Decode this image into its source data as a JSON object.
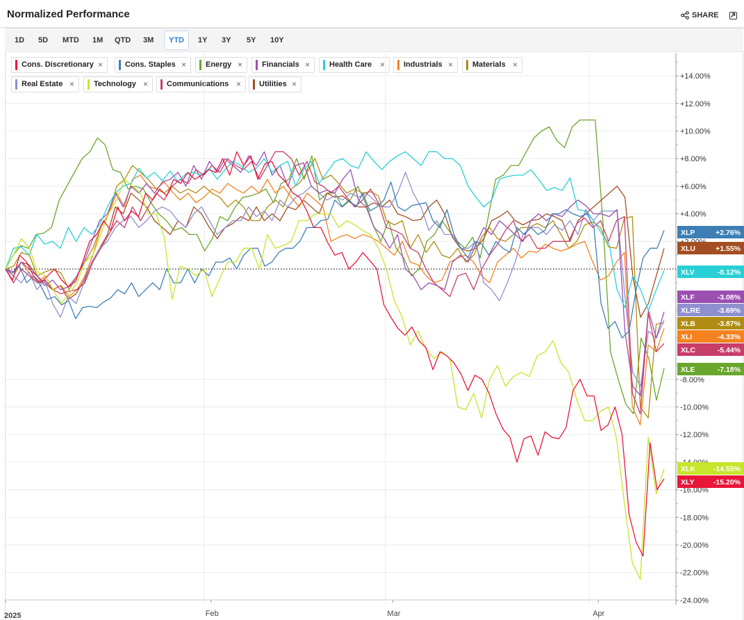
{
  "header": {
    "title": "Normalized Performance",
    "share_label": "SHARE"
  },
  "ranges": [
    {
      "label": "1D",
      "active": false
    },
    {
      "label": "5D",
      "active": false
    },
    {
      "label": "MTD",
      "active": false
    },
    {
      "label": "1M",
      "active": false
    },
    {
      "label": "QTD",
      "active": false
    },
    {
      "label": "3M",
      "active": false
    },
    {
      "label": "YTD",
      "active": true
    },
    {
      "label": "1Y",
      "active": false
    },
    {
      "label": "3Y",
      "active": false
    },
    {
      "label": "5Y",
      "active": false
    },
    {
      "label": "10Y",
      "active": false
    }
  ],
  "legend": [
    {
      "name": "Cons. Discretionary",
      "color": "#e8173a",
      "close": "×"
    },
    {
      "name": "Cons. Staples",
      "color": "#3d7fb5",
      "close": "×"
    },
    {
      "name": "Energy",
      "color": "#6aa52c",
      "close": "×"
    },
    {
      "name": "Financials",
      "color": "#9b4fb0",
      "close": "×"
    },
    {
      "name": "Health Care",
      "color": "#28d0d6",
      "close": "×"
    },
    {
      "name": "Industrials",
      "color": "#f5821f",
      "close": "×"
    },
    {
      "name": "Materials",
      "color": "#b08d12",
      "close": "×"
    },
    {
      "name": "Real Estate",
      "color": "#8f8fd0",
      "close": "×"
    },
    {
      "name": "Technology",
      "color": "#c7e52a",
      "close": "×"
    },
    {
      "name": "Communications",
      "color": "#c93d6a",
      "close": "×"
    },
    {
      "name": "Utilities",
      "color": "#a34e22",
      "close": "×"
    }
  ],
  "chart_data": {
    "type": "line",
    "title": "Normalized Performance",
    "xlabel": "",
    "ylabel": "",
    "ylim": [
      -24,
      16
    ],
    "y_ticks": [
      {
        "v": 14,
        "label": "+14.00%"
      },
      {
        "v": 12,
        "label": "+12.00%"
      },
      {
        "v": 10,
        "label": "+10.00%"
      },
      {
        "v": 8,
        "label": "+8.00%"
      },
      {
        "v": 6,
        "label": "+6.00%"
      },
      {
        "v": 4,
        "label": "+4.00%"
      },
      {
        "v": 2,
        "label": "+2.00%"
      },
      {
        "v": -8,
        "label": "-8.00%"
      },
      {
        "v": -10,
        "label": "-10.00%"
      },
      {
        "v": -12,
        "label": "-12.00%"
      },
      {
        "v": -14,
        "label": "-14.00%"
      },
      {
        "v": -16,
        "label": "-16.00%"
      },
      {
        "v": -18,
        "label": "-18.00%"
      },
      {
        "v": -20,
        "label": "-20.00%"
      },
      {
        "v": -22,
        "label": "-22.00%"
      },
      {
        "v": -24,
        "label": "-24.00%"
      }
    ],
    "x_ticks": [
      {
        "t": 0,
        "label": "2025"
      },
      {
        "t": 0.312,
        "label": "Feb"
      },
      {
        "t": 0.588,
        "label": "Mar"
      },
      {
        "t": 0.9,
        "label": "Apr"
      }
    ],
    "grid": true,
    "zero_line": true,
    "series": [
      {
        "name": "Cons. Discretionary",
        "ticker": "XLY",
        "end_label": "-15.20%",
        "color": "#e8173a",
        "values": [
          0,
          -0.8,
          1,
          0.5,
          -0.5,
          -1,
          -0.5,
          0,
          -0.8,
          -1.3,
          -0.9,
          0.5,
          2,
          2.5,
          3.5,
          2.8,
          4.5,
          3.5,
          4.2,
          3.8,
          5.5,
          5,
          5.8,
          5.3,
          6.5,
          6.2,
          7,
          6.5,
          6.8,
          7.2,
          7,
          8,
          6.8,
          8.5,
          7.5,
          8.2,
          6.5,
          7.6,
          7.8,
          6.8,
          6.3,
          5.5,
          5.2,
          4.2,
          3,
          3,
          1.9,
          1,
          1.2,
          0,
          0.5,
          1.2,
          0.6,
          0,
          -2.6,
          -3.5,
          -4.3,
          -4.8,
          -4.2,
          -5.2,
          -5.7,
          -7.3,
          -6,
          -6.3,
          -6.8,
          -7.6,
          -8.8,
          -7.7,
          -8,
          -9,
          -10.5,
          -11.6,
          -12.2,
          -14,
          -12.3,
          -12.1,
          -13.5,
          -11.8,
          -12.2,
          -12.3,
          -11.5,
          -8.8,
          -8,
          -9.2,
          -9.2,
          -11.7,
          -11.3,
          -10,
          -12,
          -17.8,
          -19.8,
          -20.8,
          -12.6,
          -16,
          -15.2
        ]
      },
      {
        "name": "Cons. Staples",
        "ticker": "XLP",
        "end_label": "+2.76%",
        "color": "#3d7fb5",
        "values": [
          0,
          -0.3,
          0.2,
          -1,
          -0.5,
          -1.2,
          -2.2,
          -2,
          -2.6,
          -2.3,
          -3.6,
          -2.8,
          -2.7,
          -2.8,
          -2.4,
          -2.1,
          -1.5,
          -1.8,
          -1,
          -2,
          -1.5,
          -1,
          -1.5,
          0,
          -1,
          -1,
          0,
          -1,
          0,
          -0.5,
          0.5,
          0.5,
          0.8,
          0,
          1,
          1.5,
          1.5,
          0.2,
          0.5,
          1.2,
          1.5,
          1.5,
          2,
          3,
          3,
          3.5,
          3.6,
          5,
          4.5,
          5,
          4.5,
          5.5,
          4.2,
          4.5,
          5,
          6.3,
          4.5,
          4.2,
          4.6,
          4.7,
          4.8,
          3.5,
          3,
          4.3,
          2.5,
          1.5,
          0.8,
          2,
          1.8,
          1,
          2,
          1.5,
          1.2,
          3,
          2.5,
          3,
          2.5,
          2.8,
          4,
          4,
          4.3,
          4,
          3.8,
          4,
          3,
          -2.5,
          -4.3,
          -3.8,
          -5,
          -4.5,
          -1.5,
          0.8,
          1.5,
          1.5,
          2.8
        ]
      },
      {
        "name": "Energy",
        "ticker": "XLE",
        "end_label": "-7.18%",
        "color": "#6aa52c",
        "values": [
          0,
          1,
          1.7,
          1.5,
          2.5,
          2.6,
          3,
          5,
          6,
          7,
          8,
          8.5,
          9.5,
          9,
          7.2,
          7,
          5.8,
          6,
          5.8,
          4.8,
          4,
          3.5,
          2.8,
          3,
          2.5,
          2.5,
          1.3,
          2.2,
          3.8,
          3.5,
          4.5,
          5.2,
          5.3,
          5.5,
          5.8,
          4.8,
          6.2,
          6.5,
          8,
          6.5,
          8.2,
          5,
          5.5,
          5.5,
          4.5,
          5,
          6,
          4.8,
          3.2,
          2,
          3.5,
          1.5,
          0.8,
          -0.5,
          0,
          2,
          2.5,
          3.5,
          2.7,
          2,
          1.5,
          2.3,
          0.8,
          3.7,
          6.5,
          6.8,
          7.5,
          7.5,
          8.5,
          9.5,
          10,
          10.3,
          9.3,
          8.8,
          10.3,
          10.8,
          10.8,
          10.8,
          3.5,
          -6,
          -8,
          -9.8,
          -10.5,
          -5,
          -6.5,
          -9.5,
          -7.2
        ]
      },
      {
        "name": "Financials",
        "ticker": "XLF",
        "end_label": "-3.08%",
        "color": "#9b4fb0",
        "values": [
          0,
          -0.2,
          0.5,
          0,
          -0.5,
          -1.2,
          -0.8,
          -1.5,
          -1.3,
          -0.6,
          0.5,
          2,
          3.5,
          4,
          5.5,
          4.5,
          6,
          5.5,
          6.2,
          5.5,
          6.3,
          6.5,
          7,
          6,
          7.5,
          6.5,
          7.8,
          7,
          8,
          7.5,
          7,
          8.2,
          7.5,
          8.5,
          6.8,
          7.5,
          6,
          7.5,
          7.7,
          6,
          5.5,
          5.7,
          5.5,
          6.5,
          7.2,
          5,
          4.5,
          3,
          2.5,
          1.5,
          2.5,
          0,
          -0.5,
          -1.5,
          -1,
          -1.2,
          -1.5,
          0.5,
          1,
          0.5,
          1.8,
          3,
          2.5,
          3.5,
          3,
          2.5,
          2,
          3.5,
          4,
          3.5,
          4,
          3.8,
          4.5,
          5,
          4.6,
          4,
          4,
          3.8,
          4.3,
          -4.5,
          -8.5,
          -9.2,
          -3,
          -5,
          -3.1
        ]
      },
      {
        "name": "Health Care",
        "ticker": "XLV",
        "end_label": "-0.12%",
        "color": "#28d0d6",
        "values": [
          0,
          1.5,
          1.6,
          1,
          2.5,
          1.8,
          2,
          1.5,
          3,
          2,
          3,
          2.5,
          3.2,
          4.5,
          5.5,
          6,
          6.2,
          7.3,
          6.6,
          7,
          6.4,
          7.1,
          6.3,
          6.9,
          7,
          6.8,
          7.3,
          6.5,
          7.2,
          7.8,
          7.5,
          7,
          7.3,
          8,
          7,
          7.5,
          7.8,
          6,
          7.2,
          7.8,
          6.2,
          7,
          7.8,
          8,
          7.5,
          7.3,
          8.5,
          7.8,
          7.2,
          7.8,
          8.2,
          8.5,
          8,
          7.5,
          8.5,
          8.5,
          8,
          8,
          7.5,
          6,
          5.2,
          4.5,
          5,
          6.5,
          6.7,
          6.8,
          6.8,
          7.2,
          6.5,
          5.7,
          5.9,
          5.7,
          6.6,
          4.3,
          4.2,
          3.5,
          2.6,
          1.8,
          -1.5,
          -2.8,
          -0.5,
          -1.5,
          -3,
          -1.5,
          -0.1
        ]
      },
      {
        "name": "Industrials",
        "ticker": "XLI",
        "end_label": "-4.33%",
        "color": "#f5821f",
        "values": [
          0,
          -0.5,
          0.5,
          -0.3,
          -1,
          -0.5,
          -1.5,
          -1.2,
          -2,
          -1.5,
          -0.5,
          1,
          3,
          4,
          5.5,
          4.5,
          6.5,
          6.8,
          6,
          5.8,
          6.3,
          5.6,
          5,
          5.5,
          4.8,
          5.2,
          5.8,
          5.5,
          6.2,
          5.8,
          5.5,
          6,
          5.5,
          6.5,
          5.5,
          6,
          5.2,
          4.5,
          5.5,
          5,
          4.5,
          2,
          2.3,
          2.5,
          2.2,
          2.5,
          2.3,
          2,
          1.5,
          1,
          2,
          0.5,
          0.3,
          -0.5,
          -1,
          -0.8,
          0.5,
          0.8,
          1,
          0.5,
          -0.5,
          -1,
          0.5,
          1,
          1.5,
          0.8,
          1.3,
          1.2,
          1.8,
          1.5,
          1.3,
          1.5,
          1.8,
          2,
          0.5,
          -0.8,
          -0.5,
          0.5,
          1.2,
          -10,
          -11.3,
          -5.5,
          -6,
          -4.3
        ]
      },
      {
        "name": "Materials",
        "ticker": "XLB",
        "end_label": "-3.87%",
        "color": "#b08d12",
        "values": [
          0,
          0.2,
          1.2,
          1,
          -0.5,
          -0.2,
          0,
          -0.3,
          -1.5,
          -0.5,
          0.5,
          1.5,
          3,
          4,
          6,
          6.5,
          7.5,
          7,
          6.5,
          5.8,
          5.5,
          6,
          5.5,
          5.8,
          5.5,
          6,
          5.5,
          5.2,
          4.5,
          5,
          4.5,
          3.5,
          3.5,
          4.5,
          5,
          4.5,
          5.8,
          6.2,
          7,
          8,
          6.5,
          6.8,
          6.2,
          5.5,
          5.8,
          5.5,
          5.6,
          5.3,
          3.5,
          3.2,
          3.5,
          1.5,
          2.5,
          1.2,
          2,
          1,
          0.8,
          1.5,
          0.5,
          1,
          2.3,
          3,
          2.2,
          2,
          2.5,
          3,
          3,
          3.3,
          3,
          3.5,
          2.5,
          1.5,
          2,
          3.2,
          3.4,
          3,
          1.6,
          1.5,
          3.7,
          3.8,
          -10,
          -10.8,
          -4,
          -3.9
        ]
      },
      {
        "name": "Real Estate",
        "ticker": "XLRE",
        "end_label": "-3.69%",
        "color": "#8f8fd0",
        "values": [
          0,
          -0.5,
          -1,
          -0.2,
          -1.5,
          -0.8,
          -2.5,
          -3.5,
          -2,
          -2.5,
          -1,
          0.5,
          1.5,
          2,
          3,
          3.5,
          3.8,
          3,
          3.5,
          4.2,
          4.5,
          4.2,
          3.5,
          3,
          4,
          4.5,
          3.5,
          2.5,
          3,
          3.5,
          3.5,
          4.5,
          3.8,
          4.2,
          3.5,
          5,
          4.5,
          5.2,
          5.5,
          6,
          5.5,
          5,
          5.3,
          5,
          5.5,
          5.2,
          5.5,
          5,
          4.5,
          4.5,
          5.5,
          7,
          5.5,
          4.5,
          2.8,
          3.5,
          2.5,
          2.5,
          1.5,
          1.5,
          2,
          -1,
          -1.5,
          -2.3,
          -1,
          0.5,
          2.5,
          3,
          3,
          2.5,
          3.2,
          2.8,
          3.5,
          2.5,
          4.3,
          3.5,
          4.2,
          4.2,
          4.2,
          -2,
          -7.5,
          -8.5,
          -4.5,
          -5,
          -3.7
        ]
      },
      {
        "name": "Technology",
        "ticker": "XLK",
        "end_label": "-14.55%",
        "color": "#c7e52a",
        "values": [
          0,
          1,
          2.2,
          1.5,
          -0.2,
          -0.5,
          -1.5,
          -2.5,
          -1.8,
          -1,
          0.5,
          1,
          2.5,
          4,
          5,
          6.5,
          6,
          5.5,
          4,
          4,
          2.3,
          -2.2,
          0.2,
          0,
          -0.5,
          0,
          -2,
          -0.7,
          0.5,
          0.5,
          1.5,
          1.5,
          0,
          2.5,
          1.5,
          1.7,
          2,
          3.5,
          3.5,
          4,
          4,
          4,
          3,
          3.5,
          3.2,
          2.8,
          2.5,
          1.5,
          0,
          -2.3,
          -3.5,
          -5.5,
          -4.5,
          -5.8,
          -6.5,
          -6,
          -6.5,
          -10,
          -10.2,
          -9,
          -10.8,
          -8,
          -7,
          -8.5,
          -7.8,
          -7.5,
          -7.8,
          -6.3,
          -6,
          -5.2,
          -6.8,
          -7.5,
          -9.5,
          -11,
          -11,
          -10.3,
          -10,
          -12.3,
          -17,
          -21.3,
          -22.5,
          -12.2,
          -16.3,
          -14.5
        ]
      },
      {
        "name": "Communications",
        "ticker": "XLC",
        "end_label": "-5.44%",
        "color": "#c93d6a",
        "values": [
          0,
          -1,
          0,
          -0.5,
          -1,
          -0.8,
          -1.5,
          -1.8,
          -1.6,
          -1.5,
          -1,
          0.5,
          1.5,
          2.5,
          3.5,
          3,
          4.5,
          3.5,
          4.5,
          5.5,
          5,
          6,
          6.5,
          6.2,
          7.2,
          6.8,
          7.5,
          7,
          8,
          7.5,
          7.2,
          7.8,
          6.5,
          7.5,
          8.5,
          8.5,
          8,
          6.8,
          7.8,
          6.3,
          6,
          5.5,
          6,
          5.2,
          4.5,
          5,
          5.8,
          4.8,
          3,
          2.8,
          2.5,
          1.5,
          1.2,
          0,
          -1,
          -1.5,
          -2,
          -0.5,
          -0.3,
          -1.5,
          0,
          1,
          1.8,
          2.8,
          3.5,
          2,
          2.5,
          1.5,
          1.5,
          2,
          2,
          2,
          3.3,
          3.7,
          3,
          3.5,
          2,
          3.5,
          3.8,
          -9,
          -10.5,
          -3.2,
          -6,
          -5.4
        ]
      },
      {
        "name": "Utilities",
        "ticker": "XLU",
        "end_label": "+1.55%",
        "color": "#a34e22",
        "values": [
          0,
          -0.5,
          0.5,
          0.3,
          -0.5,
          -1,
          -1.5,
          -1.2,
          -2.2,
          -1.8,
          -0.8,
          0.5,
          1.5,
          2.5,
          4.5,
          4,
          5.5,
          5,
          4.5,
          3.5,
          3,
          2.5,
          3.5,
          3,
          4.5,
          4,
          3,
          2.2,
          3,
          3.3,
          3.8,
          3.5,
          4.5,
          3.5,
          4,
          3.5,
          4.5,
          4.3,
          5,
          4.5,
          4,
          5.5,
          5.2,
          5.3,
          4.8,
          4.5,
          4.5,
          4.8,
          4.5,
          5,
          4,
          3.8,
          3.5,
          3.6,
          4.5,
          5,
          4,
          2.3,
          1.5,
          1.3,
          1.5,
          2.2,
          3.5,
          3.8,
          4.2,
          3.5,
          3.2,
          3.5,
          3.6,
          4,
          3.8,
          3.5,
          2,
          3.5,
          4,
          4.5,
          5,
          5.5,
          6,
          5.2,
          -0.5,
          -3.5,
          -2.5,
          -0.5,
          1.5
        ]
      }
    ]
  }
}
